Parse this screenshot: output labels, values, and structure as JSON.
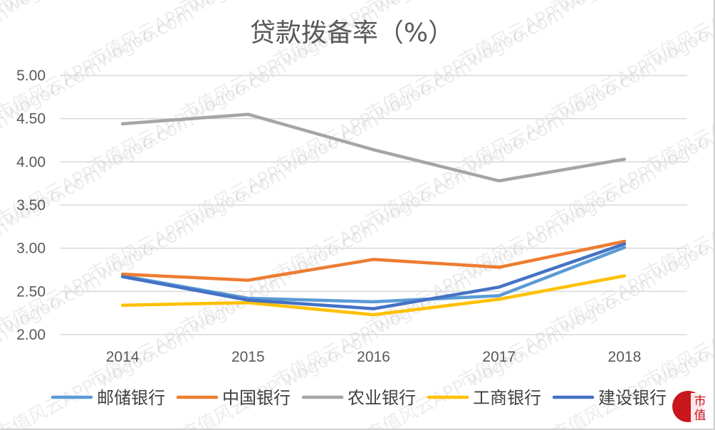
{
  "chart_data": {
    "type": "line",
    "title": "贷款拨备率（%）",
    "categories": [
      "2014",
      "2015",
      "2016",
      "2017",
      "2018"
    ],
    "ylim": [
      2.0,
      5.0
    ],
    "yticks": [
      "5.00",
      "4.50",
      "4.00",
      "3.50",
      "3.00",
      "2.50",
      "2.00"
    ],
    "grid": true,
    "legend_position": "bottom",
    "series": [
      {
        "name": "邮储银行",
        "color": "#5B9BD5",
        "values": [
          2.68,
          2.42,
          2.38,
          2.45,
          3.01
        ]
      },
      {
        "name": "中国银行",
        "color": "#ED7D31",
        "values": [
          2.7,
          2.63,
          2.87,
          2.78,
          3.08
        ]
      },
      {
        "name": "农业银行",
        "color": "#A5A5A5",
        "values": [
          4.44,
          4.55,
          4.14,
          3.78,
          4.03
        ]
      },
      {
        "name": "工商银行",
        "color": "#FFC000",
        "values": [
          2.34,
          2.37,
          2.23,
          2.41,
          2.68
        ]
      },
      {
        "name": "建设银行",
        "color": "#4472C4",
        "values": [
          2.67,
          2.4,
          2.3,
          2.55,
          3.05
        ]
      }
    ]
  },
  "watermark": {
    "text": "市值风云APP",
    "site": "wogoo.com"
  },
  "logo": {
    "text": "市值"
  }
}
